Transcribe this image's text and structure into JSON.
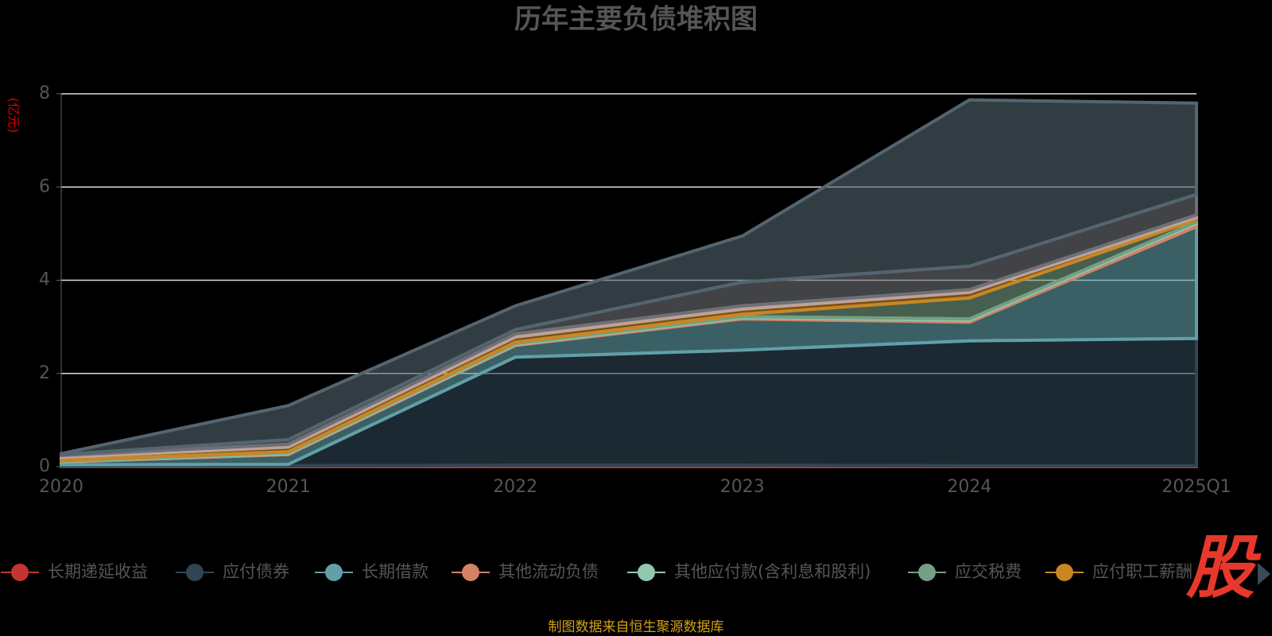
{
  "chart_data": {
    "type": "stacked_area",
    "title": "历年主要负债堆积图",
    "y_axis_label": "(亿元)",
    "source_note": "制图数据来自恒生聚源数据库",
    "logo": "股",
    "categories": [
      "2020",
      "2021",
      "2022",
      "2023",
      "2024",
      "2025Q1"
    ],
    "ylim": [
      0,
      8
    ],
    "yticks": [
      0,
      2,
      4,
      6,
      8
    ],
    "grid": true,
    "series": [
      {
        "name": "长期递延收益",
        "color": "#c23531",
        "values": [
          0.01,
          0.02,
          0.03,
          0.03,
          0.02,
          0.02
        ]
      },
      {
        "name": "应付债券",
        "color": "#2f4554",
        "values": [
          0.03,
          0.03,
          2.32,
          2.47,
          2.68,
          2.73
        ]
      },
      {
        "name": "长期借款",
        "color": "#61a0a8",
        "values": [
          0.06,
          0.21,
          0.25,
          0.67,
          0.4,
          2.4
        ]
      },
      {
        "name": "其他流动负债",
        "color": "#d48265",
        "values": [
          0.01,
          0.02,
          0.02,
          0.03,
          0.04,
          0.07
        ]
      },
      {
        "name": "其他应付款(含利息和股利)",
        "color": "#91c7ae",
        "values": [
          0.01,
          0.02,
          0.02,
          0.02,
          0.03,
          0.03
        ]
      },
      {
        "name": "应交税费",
        "color": "#749f83",
        "values": [
          0.02,
          0.02,
          0.03,
          0.05,
          0.45,
          0.05
        ]
      },
      {
        "name": "应付职工薪酬",
        "color": "#ca8622",
        "values": [
          0.06,
          0.1,
          0.11,
          0.11,
          0.12,
          0.05
        ]
      },
      {
        "color": "#bda29a",
        "values": [
          0.04,
          0.06,
          0.07,
          0.07,
          0.06,
          0.05
        ]
      },
      {
        "color": "#6e7074",
        "values": [
          0.02,
          0.1,
          0.09,
          0.51,
          0.5,
          0.44
        ]
      },
      {
        "color": "#546570",
        "values": [
          0.02,
          0.73,
          0.51,
          0.99,
          3.57,
          1.96
        ]
      }
    ]
  }
}
